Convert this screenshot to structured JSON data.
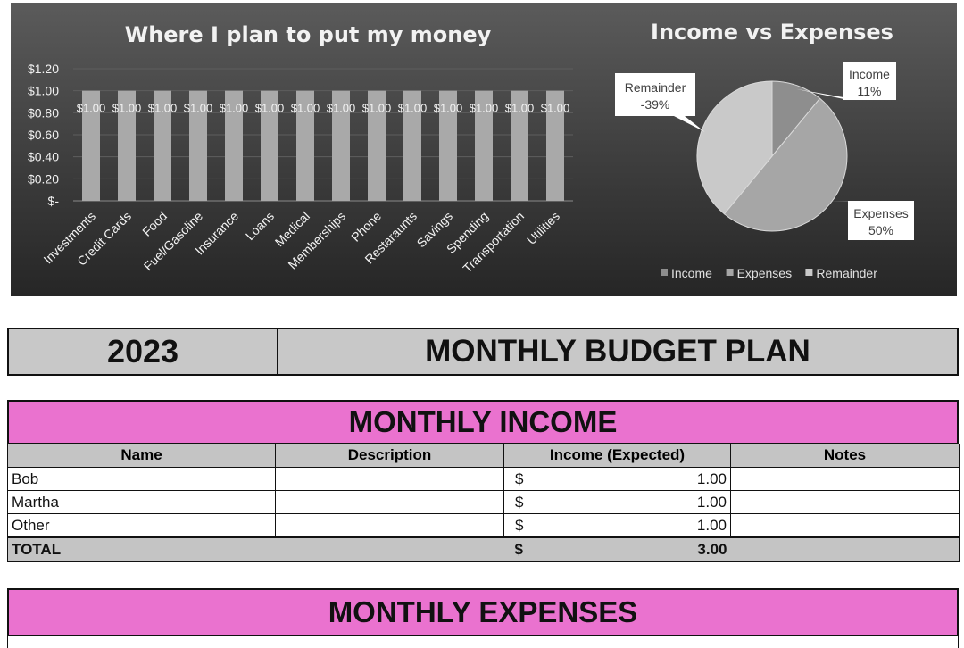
{
  "bar_chart": {
    "title": "Where I plan to put my money"
  },
  "pie_chart": {
    "title": "Income vs Expenses"
  },
  "chart_data": [
    {
      "type": "bar",
      "title": "Where I plan to put my money",
      "categories": [
        "Investments",
        "Credit Cards",
        "Food",
        "Fuel/Gasoline",
        "Insurance",
        "Loans",
        "Medical",
        "Memberships",
        "Phone",
        "Restaraunts",
        "Savings",
        "Spending",
        "Transportation",
        "Utilities"
      ],
      "values": [
        1,
        1,
        1,
        1,
        1,
        1,
        1,
        1,
        1,
        1,
        1,
        1,
        1,
        1
      ],
      "data_labels": [
        "$1.00",
        "$1.00",
        "$1.00",
        "$1.00",
        "$1.00",
        "$1.00",
        "$1.00",
        "$1.00",
        "$1.00",
        "$1.00",
        "$1.00",
        "$1.00",
        "$1.00",
        "$1.00"
      ],
      "y_ticks": [
        0,
        0.2,
        0.4,
        0.6,
        0.8,
        1.0,
        1.2
      ],
      "y_tick_labels": [
        "$-",
        "$0.20",
        "$0.40",
        "$0.60",
        "$0.80",
        "$1.00",
        "$1.20"
      ],
      "ylim": [
        0,
        1.2
      ],
      "grid": true,
      "colors": {
        "bar": "#a9a9a9",
        "text": "#f2f2f2"
      }
    },
    {
      "type": "pie",
      "title": "Income vs Expenses",
      "slices": [
        {
          "name": "Income",
          "percent": 11,
          "label_line1": "Income",
          "label_line2": "11%",
          "color": "#8e8e8e"
        },
        {
          "name": "Expenses",
          "percent": 50,
          "label_line1": "Expenses",
          "label_line2": "50%",
          "color": "#a6a6a6"
        },
        {
          "name": "Remainder",
          "percent": 39,
          "label_line1": "Remainder",
          "label_line2": "-39%",
          "color": "#c9c9c9"
        }
      ],
      "legend": [
        "Income",
        "Expenses",
        "Remainder"
      ],
      "legend_position": "bottom"
    }
  ],
  "budget": {
    "year": "2023",
    "title": "MONTHLY BUDGET PLAN"
  },
  "income": {
    "header": "MONTHLY INCOME",
    "columns": [
      "Name",
      "Description",
      "Income (Expected)",
      "Notes"
    ],
    "rows": [
      {
        "name": "Bob",
        "description": "",
        "currency": "$",
        "amount": "1.00",
        "notes": ""
      },
      {
        "name": "Martha",
        "description": "",
        "currency": "$",
        "amount": "1.00",
        "notes": ""
      },
      {
        "name": "Other",
        "description": "",
        "currency": "$",
        "amount": "1.00",
        "notes": ""
      }
    ],
    "total": {
      "label": "TOTAL",
      "currency": "$",
      "amount": "3.00"
    }
  },
  "expenses": {
    "header": "MONTHLY EXPENSES"
  },
  "colors": {
    "section_header": "#ea72cf",
    "banner": "#c8c8c8",
    "table_header": "#c4c4c4"
  }
}
